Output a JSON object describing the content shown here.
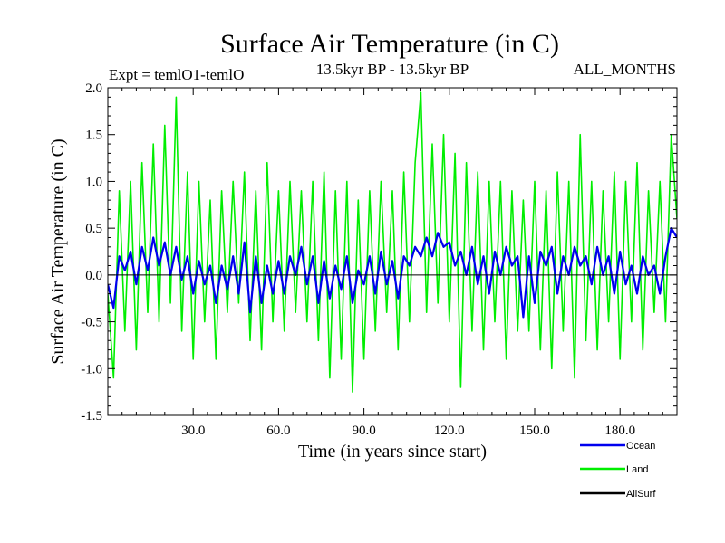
{
  "chart_data": {
    "type": "line",
    "title": "Surface Air Temperature (in C)",
    "subtitle": "13.5kyr BP - 13.5kyr BP",
    "experiment_label": "Expt = temlO1-temlO",
    "months_label": "ALL_MONTHS",
    "xlabel": "Time (in years since start)",
    "ylabel": "Surface Air Temperature (in C)",
    "xlim": [
      0,
      200
    ],
    "ylim": [
      -1.5,
      2.0
    ],
    "x_ticks": [
      30,
      60,
      90,
      120,
      150,
      180
    ],
    "x_tick_labels": [
      "30.0",
      "60.0",
      "90.0",
      "120.0",
      "150.0",
      "180.0"
    ],
    "y_ticks": [
      -1.5,
      -1.0,
      -0.5,
      0.0,
      0.5,
      1.0,
      1.5,
      2.0
    ],
    "y_tick_labels": [
      "-1.5",
      "-1.0",
      "-0.5",
      "0.0",
      "0.5",
      "1.0",
      "1.5",
      "2.0"
    ],
    "zero_line": 0.0,
    "series": [
      {
        "name": "Land",
        "color": "#00ee00",
        "x": [
          0,
          2,
          4,
          6,
          8,
          10,
          12,
          14,
          16,
          18,
          20,
          22,
          24,
          26,
          28,
          30,
          32,
          34,
          36,
          38,
          40,
          42,
          44,
          46,
          48,
          50,
          52,
          54,
          56,
          58,
          60,
          62,
          64,
          66,
          68,
          70,
          72,
          74,
          76,
          78,
          80,
          82,
          84,
          86,
          88,
          90,
          92,
          94,
          96,
          98,
          100,
          102,
          104,
          106,
          108,
          110,
          112,
          114,
          116,
          118,
          120,
          122,
          124,
          126,
          128,
          130,
          132,
          134,
          136,
          138,
          140,
          142,
          144,
          146,
          148,
          150,
          152,
          154,
          156,
          158,
          160,
          162,
          164,
          166,
          168,
          170,
          172,
          174,
          176,
          178,
          180,
          182,
          184,
          186,
          188,
          190,
          192,
          194,
          196,
          198,
          200
        ],
        "values": [
          -0.2,
          -1.1,
          0.9,
          -0.6,
          1.0,
          -0.8,
          1.2,
          -0.4,
          1.4,
          -0.5,
          1.6,
          -0.3,
          1.9,
          -0.6,
          1.1,
          -0.9,
          1.0,
          -0.5,
          0.8,
          -0.9,
          0.9,
          -0.4,
          1.0,
          -0.3,
          1.1,
          -0.7,
          0.9,
          -0.8,
          1.2,
          -0.5,
          0.9,
          -0.6,
          1.0,
          -0.4,
          0.9,
          -0.5,
          1.0,
          -0.7,
          1.1,
          -1.1,
          0.9,
          -0.9,
          1.0,
          -1.25,
          0.8,
          -0.9,
          0.9,
          -0.6,
          1.0,
          -0.4,
          0.9,
          -0.8,
          1.1,
          -0.5,
          1.2,
          1.95,
          -0.4,
          1.4,
          -0.3,
          1.5,
          -0.5,
          1.3,
          -1.2,
          1.2,
          -0.6,
          1.1,
          -0.8,
          1.0,
          -0.5,
          1.0,
          -0.9,
          0.9,
          -0.6,
          0.8,
          -0.6,
          1.0,
          -0.8,
          0.9,
          -1.0,
          1.1,
          -0.6,
          1.0,
          -1.1,
          1.5,
          -0.7,
          1.0,
          -0.8,
          0.9,
          -0.5,
          1.1,
          -0.9,
          1.0,
          -0.5,
          1.2,
          -0.8,
          0.9,
          -0.4,
          1.0,
          -0.5,
          1.5,
          0.6
        ]
      },
      {
        "name": "Ocean",
        "color": "#0000ee",
        "x": [
          0,
          2,
          4,
          6,
          8,
          10,
          12,
          14,
          16,
          18,
          20,
          22,
          24,
          26,
          28,
          30,
          32,
          34,
          36,
          38,
          40,
          42,
          44,
          46,
          48,
          50,
          52,
          54,
          56,
          58,
          60,
          62,
          64,
          66,
          68,
          70,
          72,
          74,
          76,
          78,
          80,
          82,
          84,
          86,
          88,
          90,
          92,
          94,
          96,
          98,
          100,
          102,
          104,
          106,
          108,
          110,
          112,
          114,
          116,
          118,
          120,
          122,
          124,
          126,
          128,
          130,
          132,
          134,
          136,
          138,
          140,
          142,
          144,
          146,
          148,
          150,
          152,
          154,
          156,
          158,
          160,
          162,
          164,
          166,
          168,
          170,
          172,
          174,
          176,
          178,
          180,
          182,
          184,
          186,
          188,
          190,
          192,
          194,
          196,
          198,
          200
        ],
        "values": [
          -0.1,
          -0.35,
          0.2,
          0.05,
          0.25,
          -0.1,
          0.3,
          0.05,
          0.4,
          0.1,
          0.35,
          0.0,
          0.3,
          -0.05,
          0.2,
          -0.2,
          0.15,
          -0.1,
          0.1,
          -0.3,
          0.1,
          -0.15,
          0.2,
          -0.2,
          0.35,
          -0.4,
          0.2,
          -0.3,
          0.1,
          -0.2,
          0.15,
          -0.2,
          0.2,
          0.0,
          0.3,
          -0.1,
          0.2,
          -0.3,
          0.15,
          -0.25,
          0.1,
          -0.15,
          0.2,
          -0.3,
          0.05,
          -0.1,
          0.2,
          -0.2,
          0.25,
          -0.1,
          0.15,
          -0.25,
          0.2,
          0.1,
          0.3,
          0.2,
          0.4,
          0.2,
          0.45,
          0.3,
          0.35,
          0.1,
          0.25,
          0.0,
          0.3,
          -0.1,
          0.2,
          -0.2,
          0.25,
          0.0,
          0.3,
          0.1,
          0.2,
          -0.45,
          0.2,
          -0.3,
          0.25,
          0.1,
          0.3,
          -0.2,
          0.2,
          0.0,
          0.3,
          0.1,
          0.2,
          -0.1,
          0.3,
          0.0,
          0.2,
          -0.2,
          0.25,
          -0.1,
          0.1,
          -0.2,
          0.2,
          0.0,
          0.1,
          -0.2,
          0.2,
          0.5,
          0.4
        ]
      },
      {
        "name": "AllSurf",
        "color": "#000000",
        "x": [],
        "values": []
      }
    ],
    "legend": [
      "Ocean",
      "Land",
      "AllSurf"
    ],
    "legend_position": "bottom-right"
  }
}
